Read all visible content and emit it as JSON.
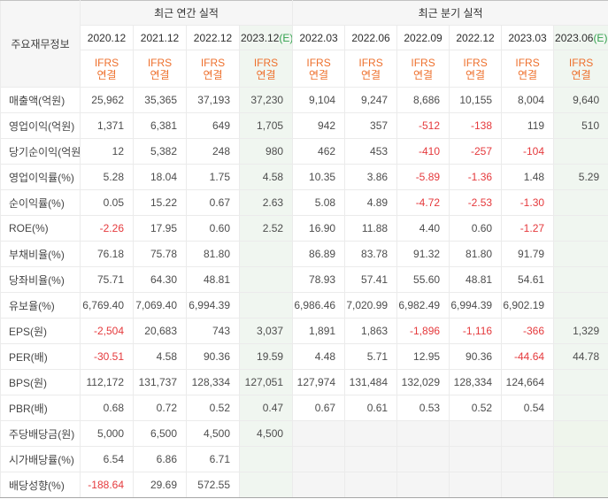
{
  "table": {
    "corner_label": "주요재무정보",
    "ifrs": {
      "line1": "IFRS",
      "line2": "연결"
    },
    "annual": {
      "label": "최근 연간 실적",
      "columns": [
        {
          "date": "2020.12",
          "suffix": ""
        },
        {
          "date": "2021.12",
          "suffix": ""
        },
        {
          "date": "2022.12",
          "suffix": ""
        },
        {
          "date": "2023.12",
          "suffix": "(E)"
        }
      ]
    },
    "quarter": {
      "label": "최근 분기 실적",
      "columns": [
        {
          "date": "2022.03",
          "suffix": ""
        },
        {
          "date": "2022.06",
          "suffix": ""
        },
        {
          "date": "2022.09",
          "suffix": ""
        },
        {
          "date": "2022.12",
          "suffix": ""
        },
        {
          "date": "2023.03",
          "suffix": ""
        },
        {
          "date": "2023.06",
          "suffix": "(E)"
        }
      ]
    },
    "rows": [
      {
        "label": "매출액(억원)",
        "group_start": false,
        "quarter_na": false,
        "annual": [
          "25,962",
          "35,365",
          "37,193",
          "37,230"
        ],
        "quarter": [
          "9,104",
          "9,247",
          "8,686",
          "10,155",
          "8,004",
          "9,640"
        ]
      },
      {
        "label": "영업이익(억원)",
        "group_start": false,
        "quarter_na": false,
        "annual": [
          "1,371",
          "6,381",
          "649",
          "1,705"
        ],
        "quarter": [
          "942",
          "357",
          "-512",
          "-138",
          "119",
          "510"
        ]
      },
      {
        "label": "당기순이익(억원)",
        "group_start": false,
        "quarter_na": false,
        "annual": [
          "12",
          "5,382",
          "248",
          "980"
        ],
        "quarter": [
          "462",
          "453",
          "-410",
          "-257",
          "-104",
          ""
        ]
      },
      {
        "label": "영업이익률(%)",
        "group_start": true,
        "quarter_na": false,
        "annual": [
          "5.28",
          "18.04",
          "1.75",
          "4.58"
        ],
        "quarter": [
          "10.35",
          "3.86",
          "-5.89",
          "-1.36",
          "1.48",
          "5.29"
        ]
      },
      {
        "label": "순이익률(%)",
        "group_start": false,
        "quarter_na": false,
        "annual": [
          "0.05",
          "15.22",
          "0.67",
          "2.63"
        ],
        "quarter": [
          "5.08",
          "4.89",
          "-4.72",
          "-2.53",
          "-1.30",
          ""
        ]
      },
      {
        "label": "ROE(%)",
        "group_start": false,
        "quarter_na": false,
        "annual": [
          "-2.26",
          "17.95",
          "0.60",
          "2.52"
        ],
        "quarter": [
          "16.90",
          "11.88",
          "4.40",
          "0.60",
          "-1.27",
          ""
        ]
      },
      {
        "label": "부채비율(%)",
        "group_start": true,
        "quarter_na": false,
        "annual": [
          "76.18",
          "75.78",
          "81.80",
          ""
        ],
        "quarter": [
          "86.89",
          "83.78",
          "91.32",
          "81.80",
          "91.79",
          ""
        ]
      },
      {
        "label": "당좌비율(%)",
        "group_start": false,
        "quarter_na": false,
        "annual": [
          "75.71",
          "64.30",
          "48.81",
          ""
        ],
        "quarter": [
          "78.93",
          "57.41",
          "55.60",
          "48.81",
          "54.61",
          ""
        ]
      },
      {
        "label": "유보율(%)",
        "group_start": false,
        "quarter_na": false,
        "annual": [
          "6,769.40",
          "7,069.40",
          "6,994.39",
          ""
        ],
        "quarter": [
          "6,986.46",
          "7,020.99",
          "6,982.49",
          "6,994.39",
          "6,902.19",
          ""
        ]
      },
      {
        "label": "EPS(원)",
        "group_start": true,
        "quarter_na": false,
        "annual": [
          "-2,504",
          "20,683",
          "743",
          "3,037"
        ],
        "quarter": [
          "1,891",
          "1,863",
          "-1,896",
          "-1,116",
          "-366",
          "1,329"
        ]
      },
      {
        "label": "PER(배)",
        "group_start": false,
        "quarter_na": false,
        "annual": [
          "-30.51",
          "4.58",
          "90.36",
          "19.59"
        ],
        "quarter": [
          "4.48",
          "5.71",
          "12.95",
          "90.36",
          "-44.64",
          "44.78"
        ]
      },
      {
        "label": "BPS(원)",
        "group_start": false,
        "quarter_na": false,
        "annual": [
          "112,172",
          "131,737",
          "128,334",
          "127,051"
        ],
        "quarter": [
          "127,974",
          "131,484",
          "132,029",
          "128,334",
          "124,664",
          ""
        ]
      },
      {
        "label": "PBR(배)",
        "group_start": false,
        "quarter_na": false,
        "annual": [
          "0.68",
          "0.72",
          "0.52",
          "0.47"
        ],
        "quarter": [
          "0.67",
          "0.61",
          "0.53",
          "0.52",
          "0.54",
          ""
        ]
      },
      {
        "label": "주당배당금(원)",
        "group_start": true,
        "quarter_na": true,
        "annual": [
          "5,000",
          "6,500",
          "4,500",
          "4,500"
        ],
        "quarter": [
          "",
          "",
          "",
          "",
          "",
          ""
        ]
      },
      {
        "label": "시가배당률(%)",
        "group_start": false,
        "quarter_na": true,
        "annual": [
          "6.54",
          "6.86",
          "6.71",
          ""
        ],
        "quarter": [
          "",
          "",
          "",
          "",
          "",
          ""
        ]
      },
      {
        "label": "배당성향(%)",
        "group_start": false,
        "quarter_na": true,
        "annual": [
          "-188.64",
          "29.69",
          "572.55",
          ""
        ],
        "quarter": [
          "",
          "",
          "",
          "",
          "",
          ""
        ]
      }
    ]
  },
  "colors": {
    "ifrs_orange": "#ee702d",
    "negative_red": "#e5393c",
    "estimate_green_text": "#33a14e",
    "estimate_column_bg": "#f0f6f0",
    "header_bg": "#f6f6f6",
    "na_cell_bg": "#f5f5f5"
  }
}
